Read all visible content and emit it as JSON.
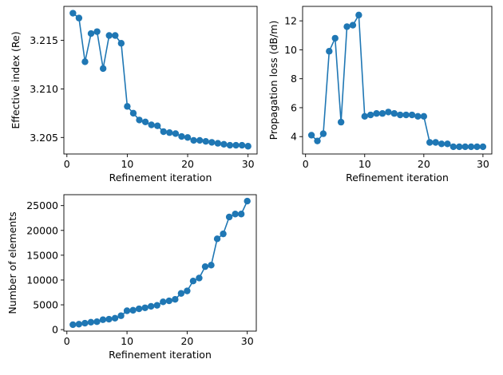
{
  "accent_color": "#1f77b4",
  "chart_data": [
    {
      "type": "line",
      "xlabel": "Refinement iteration",
      "ylabel": "Effective index (Re)",
      "xlim": [
        -0.5,
        31.5
      ],
      "ylim": [
        3.2033,
        3.2185
      ],
      "xticks": [
        0,
        10,
        20,
        30
      ],
      "yticks": [
        3.205,
        3.21,
        3.215
      ],
      "ytick_labels": [
        "3.205",
        "3.210",
        "3.215"
      ],
      "series": [
        {
          "x": [
            1,
            2,
            3,
            4,
            5,
            6,
            7,
            8,
            9,
            10,
            11,
            12,
            13,
            14,
            15,
            16,
            17,
            18,
            19,
            20,
            21,
            22,
            23,
            24,
            25,
            26,
            27,
            28,
            29,
            30
          ],
          "values": [
            3.2178,
            3.2173,
            3.2128,
            3.2157,
            3.2159,
            3.2121,
            3.2155,
            3.2155,
            3.2147,
            3.2082,
            3.2075,
            3.2068,
            3.2066,
            3.2063,
            3.2062,
            3.2056,
            3.2055,
            3.2054,
            3.2051,
            3.205,
            3.2047,
            3.2047,
            3.2046,
            3.2045,
            3.2044,
            3.2043,
            3.2042,
            3.2042,
            3.2042,
            3.2041
          ]
        }
      ]
    },
    {
      "type": "line",
      "xlabel": "Refinement iteration",
      "ylabel": "Propagation loss (dB/m)",
      "xlim": [
        -0.5,
        31.5
      ],
      "ylim": [
        2.8,
        13.0
      ],
      "xticks": [
        0,
        10,
        20,
        30
      ],
      "yticks": [
        4,
        6,
        8,
        10,
        12
      ],
      "ytick_labels": [
        "4",
        "6",
        "8",
        "10",
        "12"
      ],
      "series": [
        {
          "x": [
            1,
            2,
            3,
            4,
            5,
            6,
            7,
            8,
            9,
            10,
            11,
            12,
            13,
            14,
            15,
            16,
            17,
            18,
            19,
            20,
            21,
            22,
            23,
            24,
            25,
            26,
            27,
            28,
            29,
            30
          ],
          "values": [
            4.1,
            3.7,
            4.2,
            9.9,
            10.8,
            5.0,
            11.6,
            11.7,
            12.4,
            5.4,
            5.5,
            5.6,
            5.6,
            5.7,
            5.6,
            5.5,
            5.5,
            5.5,
            5.4,
            5.4,
            3.6,
            3.6,
            3.5,
            3.5,
            3.3,
            3.3,
            3.3,
            3.3,
            3.3,
            3.3
          ]
        }
      ]
    },
    {
      "type": "line",
      "xlabel": "Refinement iteration",
      "ylabel": "Number of elements",
      "xlim": [
        -0.5,
        31.5
      ],
      "ylim": [
        -300,
        27200
      ],
      "xticks": [
        0,
        10,
        20,
        30
      ],
      "yticks": [
        0,
        5000,
        10000,
        15000,
        20000,
        25000
      ],
      "ytick_labels": [
        "0",
        "5000",
        "10000",
        "15000",
        "20000",
        "25000"
      ],
      "series": [
        {
          "x": [
            1,
            2,
            3,
            4,
            5,
            6,
            7,
            8,
            9,
            10,
            11,
            12,
            13,
            14,
            15,
            16,
            17,
            18,
            19,
            20,
            21,
            22,
            23,
            24,
            25,
            26,
            27,
            28,
            29,
            30
          ],
          "values": [
            1000,
            1100,
            1300,
            1500,
            1600,
            2000,
            2100,
            2300,
            2800,
            3800,
            3900,
            4200,
            4400,
            4700,
            4900,
            5600,
            5800,
            6100,
            7300,
            7800,
            9800,
            10400,
            12700,
            13000,
            18300,
            19300,
            22700,
            23300,
            23300,
            25900
          ]
        }
      ]
    }
  ]
}
